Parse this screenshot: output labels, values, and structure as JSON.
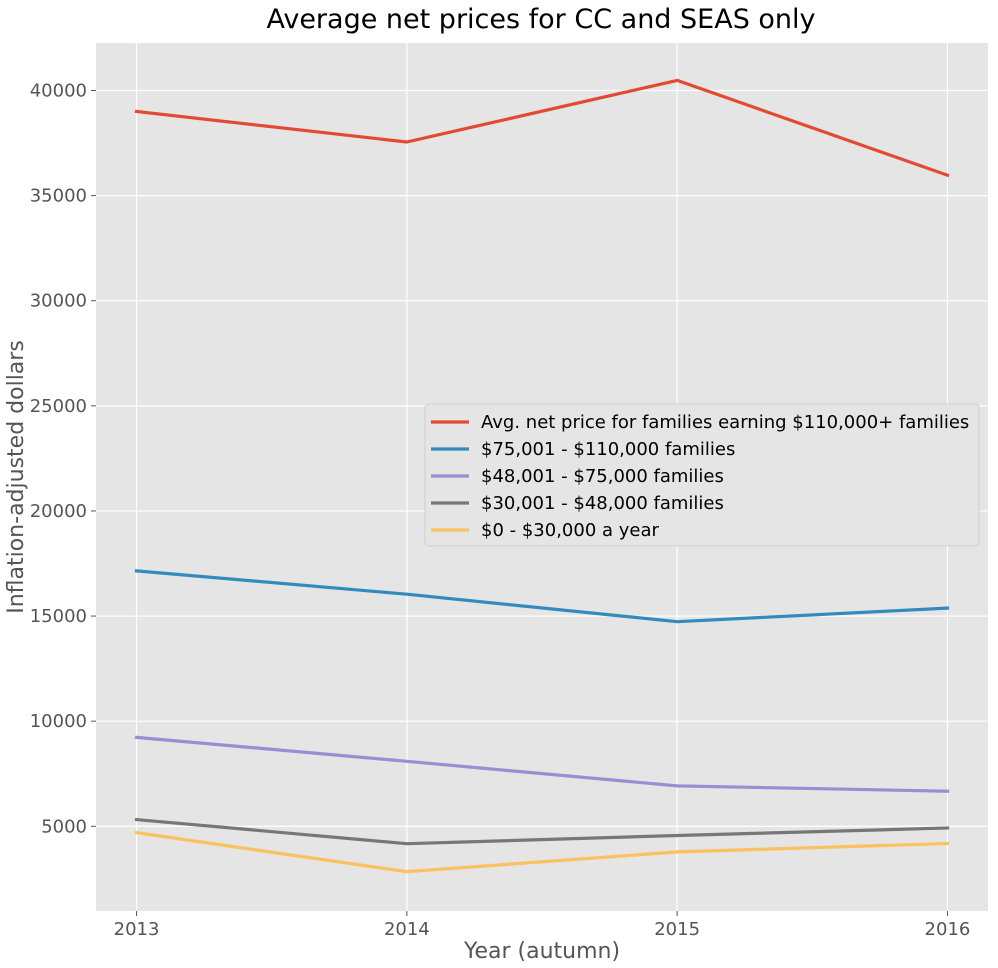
{
  "chart_data": {
    "type": "line",
    "title": "Average net prices for CC and SEAS only",
    "xlabel": "Year (autumn)",
    "ylabel": "Inflation-adjusted dollars",
    "x": [
      2013,
      2014,
      2015,
      2016
    ],
    "x_tick_labels": [
      "2013",
      "2014",
      "2015",
      "2016"
    ],
    "y_ticks": [
      5000,
      10000,
      15000,
      20000,
      25000,
      30000,
      35000,
      40000
    ],
    "y_tick_labels": [
      "5000",
      "10000",
      "15000",
      "20000",
      "25000",
      "30000",
      "35000",
      "40000"
    ],
    "xlim": [
      2012.85,
      2016.15
    ],
    "ylim": [
      970,
      42260
    ],
    "grid": true,
    "legend_position": "center-right",
    "series": [
      {
        "name": "Avg. net price for families earning $110,000+ families",
        "color": "#E24A33",
        "values": [
          39000,
          37550,
          40480,
          35970
        ]
      },
      {
        "name": "$75,001 - $110,000 families",
        "color": "#348ABD",
        "values": [
          17150,
          16040,
          14730,
          15380
        ]
      },
      {
        "name": "$48,001 - $75,000 families",
        "color": "#988ED5",
        "values": [
          9230,
          8090,
          6920,
          6670
        ]
      },
      {
        "name": "$30,001 - $48,000 families",
        "color": "#777777",
        "values": [
          5320,
          4170,
          4560,
          4920
        ]
      },
      {
        "name": "$0 - $30,000 a year",
        "color": "#FBC15E",
        "values": [
          4700,
          2840,
          3780,
          4180
        ]
      }
    ]
  }
}
